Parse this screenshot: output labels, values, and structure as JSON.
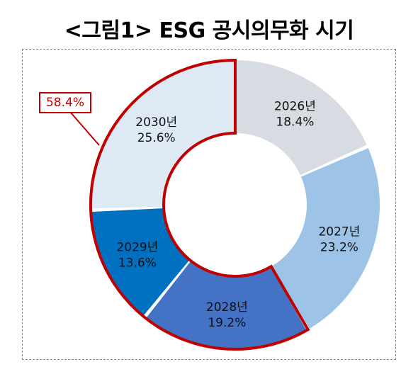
{
  "title": "<그림1> ESG 공시의무화 시기",
  "callout": "58.4%",
  "chart_data": {
    "type": "pie",
    "variant": "donut",
    "title": "<그림1> ESG 공시의무화 시기",
    "categories": [
      "2026년",
      "2027년",
      "2028년",
      "2029년",
      "2030년"
    ],
    "values": [
      18.4,
      23.2,
      19.2,
      13.6,
      25.6
    ],
    "value_labels": [
      "18.4%",
      "23.2%",
      "19.2%",
      "13.6%",
      "25.6%"
    ],
    "colors": [
      "#d7dce3",
      "#9dc3e6",
      "#4472c4",
      "#0070c0",
      "#dee9f6"
    ],
    "highlight": {
      "categories": [
        "2028년",
        "2029년",
        "2030년"
      ],
      "total_label": "58.4%",
      "outline_color": "#c00000"
    },
    "legend": "none",
    "grid": false
  }
}
